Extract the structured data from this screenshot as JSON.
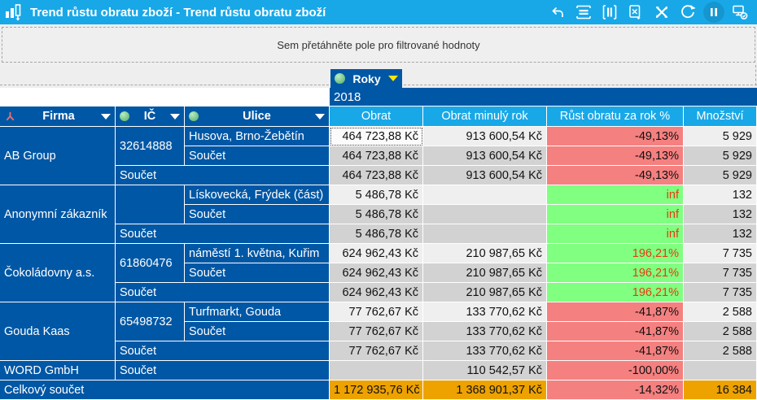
{
  "titlebar": {
    "title": "Trend růstu obratu zboží - Trend růstu obratu zboží",
    "icons": [
      "undo",
      "collapse-rows",
      "collapse-columns",
      "export-excel",
      "customize",
      "refresh",
      "pause",
      "connection-status"
    ]
  },
  "filter_zone": {
    "hint": "Sem přetáhněte pole pro filtrované hodnoty"
  },
  "column_area": {
    "field_label": "Roky",
    "year_value": "2018"
  },
  "columns": {
    "firma": "Firma",
    "ic": "IČ",
    "ulice": "Ulice",
    "obrat": "Obrat",
    "obrat_minuly": "Obrat minulý rok",
    "rust": "Růst obratu za rok %",
    "mnozstvi": "Množství"
  },
  "colors": {
    "accent_light_blue": "#18A8E8",
    "header_dark_blue": "#0057A5",
    "negative_red": "#F58080",
    "positive_green": "#80FF80",
    "green_cell_text": "#E63C0C",
    "grand_total_orange": "#EDA200",
    "detail_cell": "#EFEFEF",
    "subtotal_cell": "#D2D2D2",
    "filter_triangle_active": "#FFE600"
  },
  "table": {
    "rows": [
      [
        {
          "t": "AB Group",
          "cls": "rh",
          "rs": 3
        },
        {
          "t": "32614888",
          "cls": "rh",
          "rs": 2
        },
        {
          "t": "Husova, Brno-Žebětín",
          "cls": "rh"
        },
        {
          "t": "464 723,88 Kč",
          "cls": "d focus"
        },
        {
          "t": "913 600,54 Kč",
          "cls": "d"
        },
        {
          "t": "-49,13%",
          "cls": "r"
        },
        {
          "t": "5 929",
          "cls": "d"
        }
      ],
      [
        {
          "t": "Součet",
          "cls": "rh"
        },
        {
          "t": "464 723,88 Kč",
          "cls": "s"
        },
        {
          "t": "913 600,54 Kč",
          "cls": "s"
        },
        {
          "t": "-49,13%",
          "cls": "r"
        },
        {
          "t": "5 929",
          "cls": "s"
        }
      ],
      [
        {
          "t": "Součet",
          "cls": "rh",
          "cs": 2
        },
        {
          "t": "464 723,88 Kč",
          "cls": "s"
        },
        {
          "t": "913 600,54 Kč",
          "cls": "s"
        },
        {
          "t": "-49,13%",
          "cls": "r"
        },
        {
          "t": "5 929",
          "cls": "s"
        }
      ],
      [
        {
          "t": "Anonymní zákazník",
          "cls": "rh",
          "rs": 3
        },
        {
          "t": "",
          "cls": "rh",
          "rs": 2
        },
        {
          "t": "Lískovecká, Frýdek (část)",
          "cls": "rh"
        },
        {
          "t": "5 486,78 Kč",
          "cls": "d"
        },
        {
          "t": "",
          "cls": "d"
        },
        {
          "t": "inf",
          "cls": "g"
        },
        {
          "t": "132",
          "cls": "d"
        }
      ],
      [
        {
          "t": "Součet",
          "cls": "rh"
        },
        {
          "t": "5 486,78 Kč",
          "cls": "s"
        },
        {
          "t": "",
          "cls": "s"
        },
        {
          "t": "inf",
          "cls": "g"
        },
        {
          "t": "132",
          "cls": "s"
        }
      ],
      [
        {
          "t": "Součet",
          "cls": "rh",
          "cs": 2
        },
        {
          "t": "5 486,78 Kč",
          "cls": "s"
        },
        {
          "t": "",
          "cls": "s"
        },
        {
          "t": "inf",
          "cls": "g"
        },
        {
          "t": "132",
          "cls": "s"
        }
      ],
      [
        {
          "t": "Čokoládovny a.s.",
          "cls": "rh",
          "rs": 3
        },
        {
          "t": "61860476",
          "cls": "rh",
          "rs": 2
        },
        {
          "t": "náměstí 1. května, Kuřim",
          "cls": "rh"
        },
        {
          "t": "624 962,43 Kč",
          "cls": "d"
        },
        {
          "t": "210 987,65 Kč",
          "cls": "d"
        },
        {
          "t": "196,21%",
          "cls": "g"
        },
        {
          "t": "7 735",
          "cls": "d"
        }
      ],
      [
        {
          "t": "Součet",
          "cls": "rh"
        },
        {
          "t": "624 962,43 Kč",
          "cls": "s"
        },
        {
          "t": "210 987,65 Kč",
          "cls": "s"
        },
        {
          "t": "196,21%",
          "cls": "g"
        },
        {
          "t": "7 735",
          "cls": "s"
        }
      ],
      [
        {
          "t": "Součet",
          "cls": "rh",
          "cs": 2
        },
        {
          "t": "624 962,43 Kč",
          "cls": "s"
        },
        {
          "t": "210 987,65 Kč",
          "cls": "s"
        },
        {
          "t": "196,21%",
          "cls": "g"
        },
        {
          "t": "7 735",
          "cls": "s"
        }
      ],
      [
        {
          "t": "Gouda Kaas",
          "cls": "rh",
          "rs": 3
        },
        {
          "t": "65498732",
          "cls": "rh",
          "rs": 2
        },
        {
          "t": "Turfmarkt, Gouda",
          "cls": "rh"
        },
        {
          "t": "77 762,67 Kč",
          "cls": "d"
        },
        {
          "t": "133 770,62 Kč",
          "cls": "d"
        },
        {
          "t": "-41,87%",
          "cls": "r"
        },
        {
          "t": "2 588",
          "cls": "d"
        }
      ],
      [
        {
          "t": "Součet",
          "cls": "rh"
        },
        {
          "t": "77 762,67 Kč",
          "cls": "s"
        },
        {
          "t": "133 770,62 Kč",
          "cls": "s"
        },
        {
          "t": "-41,87%",
          "cls": "r"
        },
        {
          "t": "2 588",
          "cls": "s"
        }
      ],
      [
        {
          "t": "Součet",
          "cls": "rh",
          "cs": 2
        },
        {
          "t": "77 762,67 Kč",
          "cls": "s"
        },
        {
          "t": "133 770,62 Kč",
          "cls": "s"
        },
        {
          "t": "-41,87%",
          "cls": "r"
        },
        {
          "t": "2 588",
          "cls": "s"
        }
      ],
      [
        {
          "t": "WORD GmbH",
          "cls": "rh"
        },
        {
          "t": "Součet",
          "cls": "rh",
          "cs": 2
        },
        {
          "t": "",
          "cls": "s"
        },
        {
          "t": "110 542,57 Kč",
          "cls": "s"
        },
        {
          "t": "-100,00%",
          "cls": "r"
        },
        {
          "t": "",
          "cls": "s"
        }
      ],
      [
        {
          "t": "Celkový součet",
          "cls": "rh",
          "cs": 3
        },
        {
          "t": "1 172 935,76 Kč",
          "cls": "o"
        },
        {
          "t": "1 368 901,37 Kč",
          "cls": "o"
        },
        {
          "t": "-14,32%",
          "cls": "r"
        },
        {
          "t": "16 384",
          "cls": "o"
        }
      ]
    ]
  }
}
